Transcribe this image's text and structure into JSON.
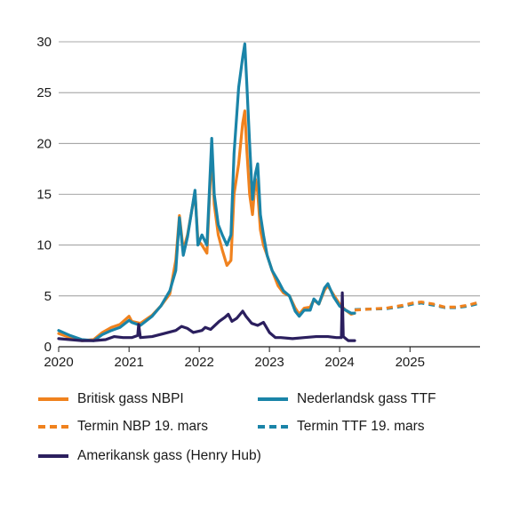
{
  "chart_data": {
    "type": "line",
    "title": "",
    "xlabel": "",
    "ylabel": "",
    "ylim": [
      0,
      30
    ],
    "xlim": [
      "2020-01-01",
      "2025-12-31"
    ],
    "y_ticks": [
      "0",
      "5",
      "10",
      "15",
      "20",
      "25",
      "30"
    ],
    "x_ticks": [
      "2020",
      "2021",
      "2022",
      "2023",
      "2024",
      "2025"
    ],
    "grid": "horizontal",
    "legend_position": "bottom",
    "colors": {
      "nbp": "#f0821e",
      "ttf": "#1a84a8",
      "henry_hub": "#2b1f5e"
    },
    "series": [
      {
        "name": "Britisk gass NBPI",
        "style": "solid",
        "color": "#f0821e",
        "points": [
          [
            "2020-01-01",
            1.3
          ],
          [
            "2020-03-01",
            0.9
          ],
          [
            "2020-05-01",
            0.6
          ],
          [
            "2020-07-01",
            0.7
          ],
          [
            "2020-08-15",
            1.4
          ],
          [
            "2020-10-01",
            1.9
          ],
          [
            "2020-11-15",
            2.2
          ],
          [
            "2021-01-01",
            3.0
          ],
          [
            "2021-01-15",
            2.5
          ],
          [
            "2021-03-01",
            2.3
          ],
          [
            "2021-05-01",
            3.1
          ],
          [
            "2021-06-15",
            4.0
          ],
          [
            "2021-08-01",
            5.2
          ],
          [
            "2021-09-01",
            8.5
          ],
          [
            "2021-09-20",
            12.9
          ],
          [
            "2021-10-10",
            9.5
          ],
          [
            "2021-11-01",
            11.0
          ],
          [
            "2021-12-10",
            15.2
          ],
          [
            "2021-12-25",
            10.5
          ],
          [
            "2022-01-15",
            10.0
          ],
          [
            "2022-02-10",
            9.2
          ],
          [
            "2022-03-07",
            19.5
          ],
          [
            "2022-03-20",
            14.0
          ],
          [
            "2022-04-10",
            11.0
          ],
          [
            "2022-05-01",
            9.5
          ],
          [
            "2022-05-25",
            8.0
          ],
          [
            "2022-06-15",
            8.5
          ],
          [
            "2022-07-01",
            15.0
          ],
          [
            "2022-07-25",
            18.0
          ],
          [
            "2022-08-15",
            22.0
          ],
          [
            "2022-08-26",
            23.2
          ],
          [
            "2022-09-05",
            19.5
          ],
          [
            "2022-09-20",
            15.0
          ],
          [
            "2022-10-05",
            13.0
          ],
          [
            "2022-10-20",
            16.5
          ],
          [
            "2022-11-01",
            15.2
          ],
          [
            "2022-11-15",
            11.5
          ],
          [
            "2022-12-01",
            10.0
          ],
          [
            "2022-12-20",
            9.0
          ],
          [
            "2023-01-15",
            7.5
          ],
          [
            "2023-02-15",
            6.0
          ],
          [
            "2023-03-15",
            5.3
          ],
          [
            "2023-04-15",
            5.0
          ],
          [
            "2023-05-15",
            3.8
          ],
          [
            "2023-06-05",
            3.2
          ],
          [
            "2023-07-01",
            3.8
          ],
          [
            "2023-08-01",
            3.9
          ],
          [
            "2023-08-20",
            4.6
          ],
          [
            "2023-09-15",
            4.2
          ],
          [
            "2023-10-15",
            5.6
          ],
          [
            "2023-11-01",
            6.0
          ],
          [
            "2023-12-01",
            5.1
          ],
          [
            "2024-01-01",
            4.2
          ],
          [
            "2024-02-01",
            3.6
          ],
          [
            "2024-03-01",
            3.2
          ],
          [
            "2024-03-19",
            3.3
          ]
        ]
      },
      {
        "name": "Nederlandsk gass TTF",
        "style": "solid",
        "color": "#1a84a8",
        "points": [
          [
            "2020-01-01",
            1.6
          ],
          [
            "2020-03-01",
            1.1
          ],
          [
            "2020-05-01",
            0.7
          ],
          [
            "2020-07-01",
            0.6
          ],
          [
            "2020-08-15",
            1.2
          ],
          [
            "2020-10-01",
            1.6
          ],
          [
            "2020-11-15",
            1.9
          ],
          [
            "2021-01-01",
            2.6
          ],
          [
            "2021-01-15",
            2.4
          ],
          [
            "2021-03-01",
            2.1
          ],
          [
            "2021-05-01",
            3.0
          ],
          [
            "2021-06-15",
            4.0
          ],
          [
            "2021-08-01",
            5.5
          ],
          [
            "2021-09-01",
            7.5
          ],
          [
            "2021-09-20",
            12.7
          ],
          [
            "2021-10-10",
            9.0
          ],
          [
            "2021-11-01",
            10.8
          ],
          [
            "2021-12-10",
            15.4
          ],
          [
            "2021-12-25",
            10.0
          ],
          [
            "2022-01-15",
            11.0
          ],
          [
            "2022-02-10",
            10.0
          ],
          [
            "2022-03-07",
            20.5
          ],
          [
            "2022-03-20",
            15.0
          ],
          [
            "2022-04-10",
            12.0
          ],
          [
            "2022-05-01",
            11.0
          ],
          [
            "2022-05-25",
            10.0
          ],
          [
            "2022-06-15",
            11.0
          ],
          [
            "2022-07-01",
            19.0
          ],
          [
            "2022-07-25",
            25.5
          ],
          [
            "2022-08-15",
            28.5
          ],
          [
            "2022-08-26",
            29.8
          ],
          [
            "2022-09-05",
            26.0
          ],
          [
            "2022-09-20",
            20.0
          ],
          [
            "2022-10-05",
            14.5
          ],
          [
            "2022-10-20",
            17.0
          ],
          [
            "2022-11-01",
            18.0
          ],
          [
            "2022-11-15",
            13.0
          ],
          [
            "2022-12-01",
            11.0
          ],
          [
            "2022-12-20",
            9.0
          ],
          [
            "2023-01-15",
            7.5
          ],
          [
            "2023-02-15",
            6.5
          ],
          [
            "2023-03-15",
            5.5
          ],
          [
            "2023-04-15",
            5.0
          ],
          [
            "2023-05-15",
            3.5
          ],
          [
            "2023-06-05",
            3.0
          ],
          [
            "2023-07-01",
            3.6
          ],
          [
            "2023-08-01",
            3.6
          ],
          [
            "2023-08-20",
            4.7
          ],
          [
            "2023-09-15",
            4.2
          ],
          [
            "2023-10-15",
            5.8
          ],
          [
            "2023-11-01",
            6.2
          ],
          [
            "2023-12-01",
            4.9
          ],
          [
            "2024-01-01",
            4.0
          ],
          [
            "2024-02-01",
            3.6
          ],
          [
            "2024-03-01",
            3.3
          ],
          [
            "2024-03-19",
            3.3
          ]
        ]
      },
      {
        "name": "Termin NBP 19. mars",
        "style": "dashed",
        "color": "#f0821e",
        "points": [
          [
            "2024-03-19",
            3.6
          ],
          [
            "2024-06-01",
            3.7
          ],
          [
            "2024-09-01",
            3.8
          ],
          [
            "2024-12-01",
            4.1
          ],
          [
            "2025-01-15",
            4.3
          ],
          [
            "2025-03-01",
            4.4
          ],
          [
            "2025-05-01",
            4.2
          ],
          [
            "2025-07-01",
            3.9
          ],
          [
            "2025-09-01",
            3.9
          ],
          [
            "2025-11-01",
            4.1
          ],
          [
            "2025-12-31",
            4.4
          ]
        ]
      },
      {
        "name": "Termin TTF 19. mars",
        "style": "dashed",
        "color": "#1a84a8",
        "points": [
          [
            "2024-03-19",
            3.65
          ],
          [
            "2024-06-01",
            3.7
          ],
          [
            "2024-09-01",
            3.75
          ],
          [
            "2024-12-01",
            4.0
          ],
          [
            "2025-01-15",
            4.2
          ],
          [
            "2025-03-01",
            4.3
          ],
          [
            "2025-05-01",
            4.1
          ],
          [
            "2025-07-01",
            3.85
          ],
          [
            "2025-09-01",
            3.85
          ],
          [
            "2025-11-01",
            4.0
          ],
          [
            "2025-12-31",
            4.3
          ]
        ]
      },
      {
        "name": "Amerikansk gass (Henry Hub)",
        "style": "solid",
        "color": "#2b1f5e",
        "points": [
          [
            "2020-01-01",
            0.8
          ],
          [
            "2020-03-01",
            0.7
          ],
          [
            "2020-05-01",
            0.6
          ],
          [
            "2020-07-01",
            0.6
          ],
          [
            "2020-09-01",
            0.7
          ],
          [
            "2020-10-15",
            1.0
          ],
          [
            "2020-12-01",
            0.9
          ],
          [
            "2021-01-15",
            0.9
          ],
          [
            "2021-02-15",
            1.1
          ],
          [
            "2021-02-20",
            2.2
          ],
          [
            "2021-03-01",
            0.9
          ],
          [
            "2021-05-01",
            1.0
          ],
          [
            "2021-07-01",
            1.3
          ],
          [
            "2021-09-01",
            1.6
          ],
          [
            "2021-10-01",
            2.0
          ],
          [
            "2021-11-01",
            1.8
          ],
          [
            "2021-12-01",
            1.4
          ],
          [
            "2022-01-15",
            1.6
          ],
          [
            "2022-02-01",
            1.9
          ],
          [
            "2022-03-01",
            1.7
          ],
          [
            "2022-04-15",
            2.5
          ],
          [
            "2022-05-15",
            2.9
          ],
          [
            "2022-06-01",
            3.2
          ],
          [
            "2022-06-20",
            2.5
          ],
          [
            "2022-07-15",
            2.8
          ],
          [
            "2022-08-15",
            3.5
          ],
          [
            "2022-09-01",
            3.0
          ],
          [
            "2022-10-01",
            2.3
          ],
          [
            "2022-11-01",
            2.1
          ],
          [
            "2022-12-01",
            2.4
          ],
          [
            "2023-01-01",
            1.4
          ],
          [
            "2023-02-01",
            0.9
          ],
          [
            "2023-03-01",
            0.9
          ],
          [
            "2023-05-01",
            0.8
          ],
          [
            "2023-07-01",
            0.9
          ],
          [
            "2023-09-01",
            1.0
          ],
          [
            "2023-11-01",
            1.0
          ],
          [
            "2023-12-15",
            0.9
          ],
          [
            "2024-01-10",
            0.9
          ],
          [
            "2024-01-15",
            5.3
          ],
          [
            "2024-01-20",
            1.0
          ],
          [
            "2024-02-15",
            0.6
          ],
          [
            "2024-03-19",
            0.6
          ]
        ]
      }
    ]
  }
}
